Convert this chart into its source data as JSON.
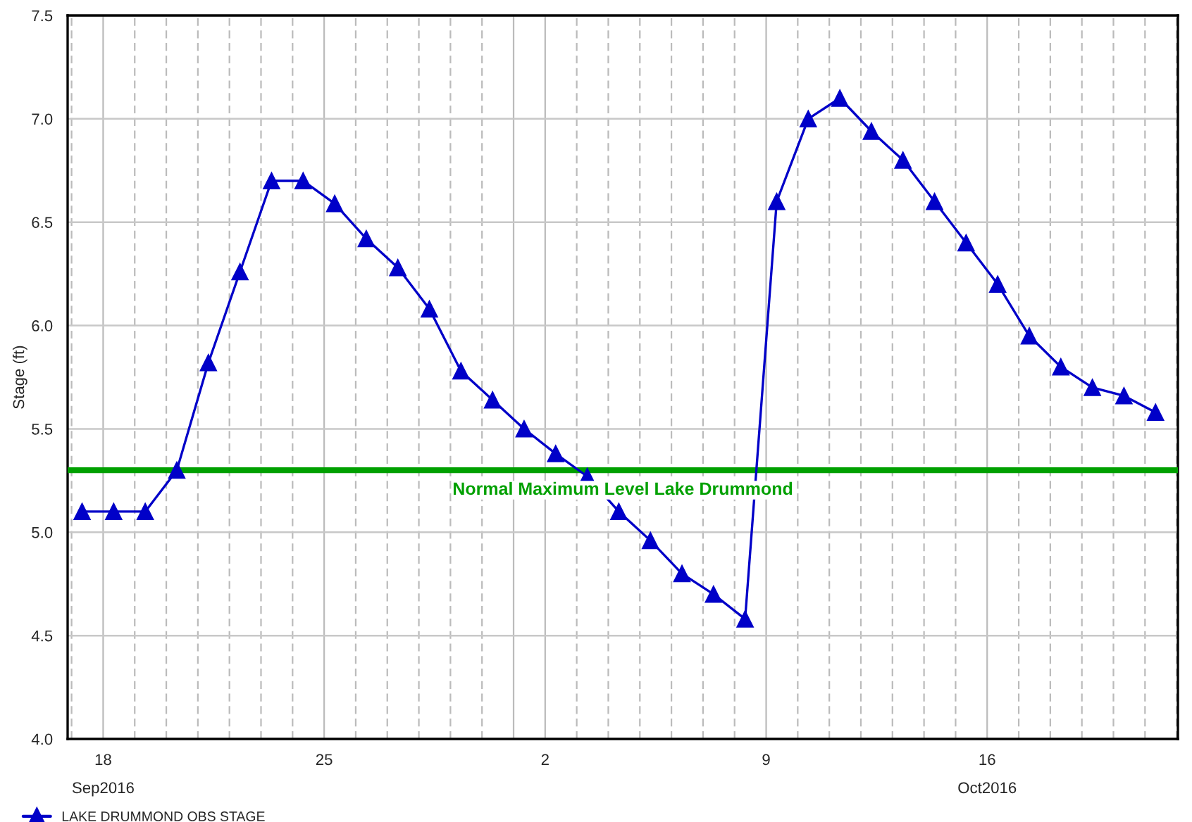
{
  "chart_data": {
    "type": "line",
    "ylabel": "Stage (ft)",
    "x": [
      "2016-09-17T08:00",
      "2016-09-18T08:00",
      "2016-09-19T08:00",
      "2016-09-20T08:00",
      "2016-09-21T08:00",
      "2016-09-22T08:00",
      "2016-09-23T08:00",
      "2016-09-24T08:00",
      "2016-09-25T08:00",
      "2016-09-26T08:00",
      "2016-09-27T08:00",
      "2016-09-28T08:00",
      "2016-09-29T08:00",
      "2016-09-30T08:00",
      "2016-10-01T08:00",
      "2016-10-02T08:00",
      "2016-10-03T08:00",
      "2016-10-04T08:00",
      "2016-10-05T08:00",
      "2016-10-06T08:00",
      "2016-10-07T08:00",
      "2016-10-08T08:00",
      "2016-10-09T08:00",
      "2016-10-10T08:00",
      "2016-10-11T08:00",
      "2016-10-12T08:00",
      "2016-10-13T08:00",
      "2016-10-14T08:00",
      "2016-10-15T08:00",
      "2016-10-16T08:00",
      "2016-10-17T08:00",
      "2016-10-18T08:00",
      "2016-10-19T08:00",
      "2016-10-20T08:00",
      "2016-10-21T08:00"
    ],
    "series": [
      {
        "name": "LAKE DRUMMOND OBS STAGE",
        "color": "#0000c8",
        "values": [
          5.1,
          5.1,
          5.1,
          5.3,
          5.82,
          6.26,
          6.7,
          6.7,
          6.59,
          6.42,
          6.28,
          6.08,
          5.78,
          5.64,
          5.5,
          5.38,
          5.27,
          5.1,
          4.96,
          4.8,
          4.7,
          4.58,
          6.6,
          7.0,
          7.1,
          6.94,
          6.8,
          6.6,
          6.4,
          6.2,
          5.95,
          5.8,
          5.7,
          5.66,
          5.58
        ]
      }
    ],
    "xlim": [
      "2016-09-16T21:00",
      "2016-10-22T01:00"
    ],
    "xticks": [
      {
        "value": "2016-09-18",
        "label": "18\nSep2016"
      },
      {
        "value": "2016-09-25",
        "label": "25"
      },
      {
        "value": "2016-10-01",
        "label": null
      },
      {
        "value": "2016-10-02",
        "label": "2"
      },
      {
        "value": "2016-10-09",
        "label": "9"
      },
      {
        "value": "2016-10-16",
        "label": "16\nOct2016"
      }
    ],
    "ylim": [
      4.0,
      7.5
    ],
    "yticks": [
      {
        "value": 4.0,
        "label": "4.0"
      },
      {
        "value": 4.5,
        "label": "4.5"
      },
      {
        "value": 5.0,
        "label": "5.0"
      },
      {
        "value": 5.5,
        "label": "5.5"
      },
      {
        "value": 6.0,
        "label": "6.0"
      },
      {
        "value": 6.5,
        "label": "6.5"
      },
      {
        "value": 7.0,
        "label": "7.0"
      },
      {
        "value": 7.5,
        "label": "7.5"
      }
    ],
    "ref_lines": [
      {
        "axis": "y",
        "value": 5.3,
        "label": "Normal Maximum Level Lake Drummond",
        "color": "#00a000"
      }
    ],
    "grid": true,
    "legend": "bottom left",
    "marker": "triangle",
    "line_style": "solid"
  }
}
